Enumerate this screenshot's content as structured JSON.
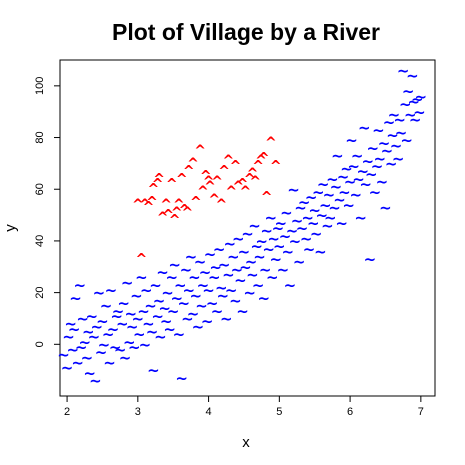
{
  "chart_data": {
    "type": "scatter",
    "title": "Plot of Village by a River",
    "xlabel": "x",
    "ylabel": "y",
    "xlim": [
      1.9,
      7.2
    ],
    "ylim": [
      -20,
      110
    ],
    "xticks": [
      "2",
      "3",
      "4",
      "5",
      "6",
      "7"
    ],
    "yticks": [
      "0",
      "20",
      "40",
      "60",
      "80",
      "100"
    ],
    "grid": false,
    "legend": "none",
    "series": [
      {
        "marker": "^",
        "color": "#ff0000",
        "points": [
          [
            3.0,
            55
          ],
          [
            3.05,
            34
          ],
          [
            3.1,
            55
          ],
          [
            3.15,
            54
          ],
          [
            3.2,
            56
          ],
          [
            3.22,
            61
          ],
          [
            3.28,
            63
          ],
          [
            3.3,
            65
          ],
          [
            3.35,
            50
          ],
          [
            3.4,
            55
          ],
          [
            3.43,
            51
          ],
          [
            3.48,
            63
          ],
          [
            3.52,
            49
          ],
          [
            3.55,
            52
          ],
          [
            3.58,
            55
          ],
          [
            3.62,
            65
          ],
          [
            3.66,
            53
          ],
          [
            3.7,
            52
          ],
          [
            3.72,
            68
          ],
          [
            3.78,
            71
          ],
          [
            3.82,
            56
          ],
          [
            3.88,
            76
          ],
          [
            3.92,
            60
          ],
          [
            3.96,
            66
          ],
          [
            4.0,
            64
          ],
          [
            4.02,
            62
          ],
          [
            4.08,
            57
          ],
          [
            4.12,
            64
          ],
          [
            4.18,
            55
          ],
          [
            4.22,
            68
          ],
          [
            4.28,
            72
          ],
          [
            4.32,
            60
          ],
          [
            4.38,
            70
          ],
          [
            4.42,
            62
          ],
          [
            4.48,
            63
          ],
          [
            4.52,
            60
          ],
          [
            4.58,
            65
          ],
          [
            4.62,
            67
          ],
          [
            4.66,
            64
          ],
          [
            4.7,
            70
          ],
          [
            4.74,
            72
          ],
          [
            4.78,
            73
          ],
          [
            4.82,
            58
          ],
          [
            4.88,
            79
          ],
          [
            4.95,
            70
          ]
        ]
      },
      {
        "marker": "~",
        "color": "#0000ff",
        "points": [
          [
            1.95,
            -5
          ],
          [
            2.0,
            -10
          ],
          [
            2.02,
            2
          ],
          [
            2.05,
            7
          ],
          [
            2.08,
            -3
          ],
          [
            2.1,
            5
          ],
          [
            2.12,
            17
          ],
          [
            2.15,
            -8
          ],
          [
            2.18,
            22
          ],
          [
            2.2,
            -2
          ],
          [
            2.22,
            9
          ],
          [
            2.25,
            0
          ],
          [
            2.28,
            -6
          ],
          [
            2.3,
            4
          ],
          [
            2.32,
            -12
          ],
          [
            2.35,
            10
          ],
          [
            2.38,
            2
          ],
          [
            2.4,
            -15
          ],
          [
            2.42,
            6
          ],
          [
            2.45,
            19
          ],
          [
            2.48,
            -4
          ],
          [
            2.5,
            8
          ],
          [
            2.52,
            -1
          ],
          [
            2.55,
            14
          ],
          [
            2.58,
            3
          ],
          [
            2.6,
            -8
          ],
          [
            2.62,
            20
          ],
          [
            2.65,
            5
          ],
          [
            2.68,
            -2
          ],
          [
            2.7,
            10
          ],
          [
            2.72,
            12
          ],
          [
            2.75,
            -3
          ],
          [
            2.78,
            7
          ],
          [
            2.8,
            15
          ],
          [
            2.82,
            -6
          ],
          [
            2.85,
            23
          ],
          [
            2.88,
            0
          ],
          [
            2.9,
            11
          ],
          [
            2.92,
            6
          ],
          [
            2.95,
            -2
          ],
          [
            2.98,
            18
          ],
          [
            3.0,
            9
          ],
          [
            3.02,
            3
          ],
          [
            3.05,
            25
          ],
          [
            3.08,
            12
          ],
          [
            3.1,
            -1
          ],
          [
            3.12,
            20
          ],
          [
            3.15,
            7
          ],
          [
            3.18,
            14
          ],
          [
            3.2,
            4
          ],
          [
            3.22,
            -11
          ],
          [
            3.25,
            22
          ],
          [
            3.28,
            10
          ],
          [
            3.3,
            16
          ],
          [
            3.32,
            2
          ],
          [
            3.35,
            27
          ],
          [
            3.38,
            13
          ],
          [
            3.4,
            8
          ],
          [
            3.42,
            19
          ],
          [
            3.45,
            5
          ],
          [
            3.48,
            25
          ],
          [
            3.5,
            12
          ],
          [
            3.52,
            30
          ],
          [
            3.55,
            17
          ],
          [
            3.58,
            3
          ],
          [
            3.6,
            22
          ],
          [
            3.62,
            -14
          ],
          [
            3.65,
            15
          ],
          [
            3.68,
            28
          ],
          [
            3.7,
            9
          ],
          [
            3.72,
            20
          ],
          [
            3.75,
            33
          ],
          [
            3.78,
            11
          ],
          [
            3.8,
            25
          ],
          [
            3.82,
            18
          ],
          [
            3.85,
            6
          ],
          [
            3.88,
            31
          ],
          [
            3.9,
            14
          ],
          [
            3.92,
            22
          ],
          [
            3.95,
            27
          ],
          [
            3.98,
            8
          ],
          [
            4.0,
            20
          ],
          [
            4.02,
            34
          ],
          [
            4.05,
            15
          ],
          [
            4.08,
            25
          ],
          [
            4.1,
            29
          ],
          [
            4.12,
            12
          ],
          [
            4.15,
            36
          ],
          [
            4.18,
            21
          ],
          [
            4.2,
            18
          ],
          [
            4.22,
            30
          ],
          [
            4.25,
            9
          ],
          [
            4.28,
            26
          ],
          [
            4.3,
            38
          ],
          [
            4.32,
            20
          ],
          [
            4.35,
            33
          ],
          [
            4.38,
            16
          ],
          [
            4.4,
            28
          ],
          [
            4.42,
            40
          ],
          [
            4.45,
            24
          ],
          [
            4.48,
            12
          ],
          [
            4.5,
            35
          ],
          [
            4.52,
            29
          ],
          [
            4.55,
            42
          ],
          [
            4.58,
            19
          ],
          [
            4.6,
            31
          ],
          [
            4.62,
            26
          ],
          [
            4.65,
            45
          ],
          [
            4.68,
            37
          ],
          [
            4.7,
            22
          ],
          [
            4.72,
            33
          ],
          [
            4.75,
            39
          ],
          [
            4.78,
            17
          ],
          [
            4.8,
            28
          ],
          [
            4.82,
            43
          ],
          [
            4.85,
            36
          ],
          [
            4.88,
            48
          ],
          [
            4.9,
            25
          ],
          [
            4.92,
            40
          ],
          [
            4.95,
            32
          ],
          [
            4.98,
            44
          ],
          [
            5.0,
            37
          ],
          [
            5.02,
            46
          ],
          [
            5.05,
            28
          ],
          [
            5.08,
            41
          ],
          [
            5.1,
            50
          ],
          [
            5.12,
            35
          ],
          [
            5.15,
            22
          ],
          [
            5.18,
            43
          ],
          [
            5.2,
            59
          ],
          [
            5.22,
            39
          ],
          [
            5.25,
            47
          ],
          [
            5.28,
            31
          ],
          [
            5.3,
            52
          ],
          [
            5.32,
            44
          ],
          [
            5.35,
            54
          ],
          [
            5.38,
            40
          ],
          [
            5.4,
            48
          ],
          [
            5.42,
            36
          ],
          [
            5.45,
            56
          ],
          [
            5.48,
            46
          ],
          [
            5.5,
            51
          ],
          [
            5.52,
            42
          ],
          [
            5.55,
            58
          ],
          [
            5.58,
            35
          ],
          [
            5.6,
            49
          ],
          [
            5.62,
            61
          ],
          [
            5.65,
            53
          ],
          [
            5.68,
            45
          ],
          [
            5.7,
            57
          ],
          [
            5.72,
            48
          ],
          [
            5.75,
            63
          ],
          [
            5.78,
            52
          ],
          [
            5.8,
            60
          ],
          [
            5.82,
            72
          ],
          [
            5.85,
            55
          ],
          [
            5.88,
            46
          ],
          [
            5.9,
            64
          ],
          [
            5.92,
            58
          ],
          [
            5.95,
            67
          ],
          [
            5.98,
            53
          ],
          [
            6.0,
            62
          ],
          [
            6.02,
            78
          ],
          [
            6.05,
            68
          ],
          [
            6.08,
            57
          ],
          [
            6.1,
            72
          ],
          [
            6.12,
            63
          ],
          [
            6.15,
            48
          ],
          [
            6.18,
            66
          ],
          [
            6.2,
            83
          ],
          [
            6.22,
            61
          ],
          [
            6.25,
            70
          ],
          [
            6.28,
            32
          ],
          [
            6.3,
            65
          ],
          [
            6.32,
            75
          ],
          [
            6.35,
            58
          ],
          [
            6.38,
            68
          ],
          [
            6.4,
            82
          ],
          [
            6.42,
            71
          ],
          [
            6.45,
            62
          ],
          [
            6.48,
            77
          ],
          [
            6.5,
            52
          ],
          [
            6.52,
            74
          ],
          [
            6.55,
            85
          ],
          [
            6.58,
            69
          ],
          [
            6.6,
            80
          ],
          [
            6.62,
            88
          ],
          [
            6.65,
            76
          ],
          [
            6.68,
            71
          ],
          [
            6.7,
            86
          ],
          [
            6.72,
            81
          ],
          [
            6.75,
            105
          ],
          [
            6.78,
            92
          ],
          [
            6.8,
            78
          ],
          [
            6.82,
            97
          ],
          [
            6.85,
            88
          ],
          [
            6.88,
            103
          ],
          [
            6.9,
            93
          ],
          [
            6.92,
            86
          ],
          [
            6.95,
            94
          ],
          [
            6.98,
            89
          ],
          [
            7.0,
            95
          ]
        ]
      }
    ]
  }
}
